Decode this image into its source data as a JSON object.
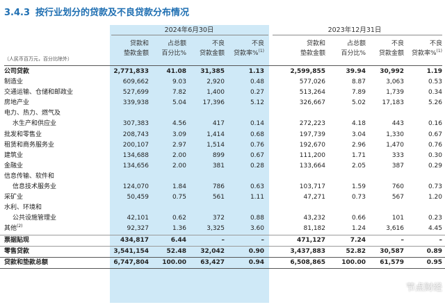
{
  "section": {
    "number": "3.4.3",
    "title": "按行业划分的贷款及不良贷款分布情况"
  },
  "periods": {
    "current": "2024年6月30日",
    "prior": "2023年12月31日"
  },
  "unit_note": "（人民币百万元，百分比除外）",
  "columns": [
    {
      "l1": "贷款和",
      "l2": "垫款金额"
    },
    {
      "l1": "占总额",
      "l2": "百分比%"
    },
    {
      "l1": "不良",
      "l2": "贷款金额"
    },
    {
      "l1": "不良",
      "l2": "贷款率%",
      "sup": "(1)"
    },
    {
      "l1": "贷款和",
      "l2": "垫款金额"
    },
    {
      "l1": "占总额",
      "l2": "百分比%"
    },
    {
      "l1": "不良",
      "l2": "贷款金额"
    },
    {
      "l1": "不良",
      "l2": "贷款率%",
      "sup": "(1)"
    }
  ],
  "rows": [
    {
      "label": [
        "公司贷款"
      ],
      "bold": true,
      "values": [
        "2,771,833",
        "41.08",
        "31,385",
        "1.13",
        "2,599,855",
        "39.94",
        "30,992",
        "1.19"
      ]
    },
    {
      "label": [
        "制造业"
      ],
      "values": [
        "609,662",
        "9.03",
        "2,920",
        "0.48",
        "577,026",
        "8.87",
        "3,063",
        "0.53"
      ]
    },
    {
      "label": [
        "交通运输、仓储和邮政业"
      ],
      "values": [
        "527,699",
        "7.82",
        "1,400",
        "0.27",
        "513,264",
        "7.89",
        "1,739",
        "0.34"
      ]
    },
    {
      "label": [
        "房地产业"
      ],
      "values": [
        "339,938",
        "5.04",
        "17,396",
        "5.12",
        "326,667",
        "5.02",
        "17,183",
        "5.26"
      ]
    },
    {
      "label": [
        "电力、热力、燃气及",
        "水生产和供应业"
      ],
      "values": [
        "307,383",
        "4.56",
        "417",
        "0.14",
        "272,223",
        "4.18",
        "443",
        "0.16"
      ]
    },
    {
      "label": [
        "批发和零售业"
      ],
      "values": [
        "208,743",
        "3.09",
        "1,414",
        "0.68",
        "197,739",
        "3.04",
        "1,330",
        "0.67"
      ]
    },
    {
      "label": [
        "租赁和商务服务业"
      ],
      "values": [
        "200,107",
        "2.97",
        "1,514",
        "0.76",
        "192,670",
        "2.96",
        "1,470",
        "0.76"
      ]
    },
    {
      "label": [
        "建筑业"
      ],
      "values": [
        "134,688",
        "2.00",
        "899",
        "0.67",
        "111,200",
        "1.71",
        "333",
        "0.30"
      ]
    },
    {
      "label": [
        "金融业"
      ],
      "values": [
        "134,656",
        "2.00",
        "381",
        "0.28",
        "133,664",
        "2.05",
        "387",
        "0.29"
      ]
    },
    {
      "label": [
        "信息传输、软件和",
        "信息技术服务业"
      ],
      "values": [
        "124,070",
        "1.84",
        "786",
        "0.63",
        "103,717",
        "1.59",
        "760",
        "0.73"
      ]
    },
    {
      "label": [
        "采矿业"
      ],
      "values": [
        "50,459",
        "0.75",
        "561",
        "1.11",
        "47,271",
        "0.73",
        "567",
        "1.20"
      ]
    },
    {
      "label": [
        "水利、环境和",
        "公共设施管理业"
      ],
      "values": [
        "42,101",
        "0.62",
        "372",
        "0.88",
        "43,232",
        "0.66",
        "101",
        "0.23"
      ]
    },
    {
      "label": [
        "其他"
      ],
      "label_sup": "(2)",
      "values": [
        "92,327",
        "1.36",
        "3,325",
        "3.60",
        "81,182",
        "1.24",
        "3,616",
        "4.45"
      ]
    },
    {
      "label": [
        "票据贴现"
      ],
      "bold": true,
      "values": [
        "434,817",
        "6.44",
        "–",
        "–",
        "471,127",
        "7.24",
        "–",
        "–"
      ]
    },
    {
      "label": [
        "零售贷款"
      ],
      "bold": true,
      "values": [
        "3,541,154",
        "52.48",
        "32,042",
        "0.90",
        "3,437,883",
        "52.82",
        "30,587",
        "0.89"
      ]
    },
    {
      "label": [
        "贷款和垫款总额"
      ],
      "bold": true,
      "values": [
        "6,747,804",
        "100.00",
        "63,427",
        "0.94",
        "6,508,865",
        "100.00",
        "61,579",
        "0.95"
      ]
    }
  ],
  "watermark": "节点财经",
  "colors": {
    "accent": "#1f6fb2",
    "highlight": "#cfe9f7"
  }
}
